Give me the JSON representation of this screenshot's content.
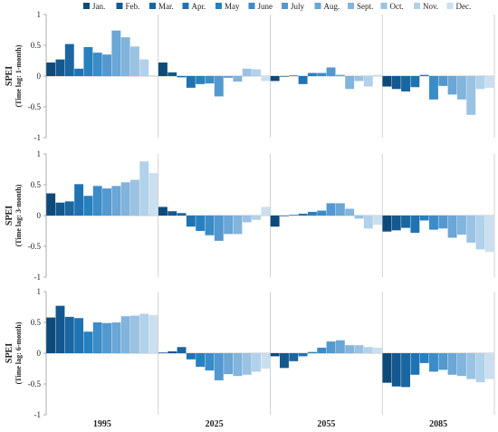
{
  "chart_data": {
    "type": "bar",
    "legend": {
      "placement": "top",
      "entries": [
        "Jan.",
        "Feb.",
        "Mar.",
        "Apr.",
        "May",
        "June",
        "July",
        "Aug.",
        "Sept.",
        "Oct.",
        "Nov.",
        "Dec."
      ]
    },
    "months": [
      "Jan.",
      "Feb.",
      "Mar.",
      "Apr.",
      "May",
      "June",
      "July",
      "Aug.",
      "Sept.",
      "Oct.",
      "Nov.",
      "Dec."
    ],
    "month_colors": [
      "#0d4a7a",
      "#14588f",
      "#1a66a1",
      "#1f73b3",
      "#2780c0",
      "#3b8cc8",
      "#5398cf",
      "#6aa6d6",
      "#82b4dc",
      "#9ac2e3",
      "#b2d1ea",
      "#cadff0"
    ],
    "x_groups": [
      "1995",
      "2025",
      "2055",
      "2085"
    ],
    "y_ticks": [
      "1",
      "0.5",
      "0",
      "-0.5",
      "-1"
    ],
    "ylim": [
      -1,
      1
    ],
    "grid": false,
    "panels": [
      {
        "ylabel": "SPEI",
        "ylabel_sub": "(Time lag: 1-month)",
        "series": [
          {
            "group": "1995",
            "values": [
              0.22,
              0.27,
              0.52,
              0.12,
              0.47,
              0.38,
              0.35,
              0.74,
              0.63,
              0.48,
              0.27,
              0.0
            ]
          },
          {
            "group": "2025",
            "values": [
              0.22,
              0.06,
              -0.02,
              -0.19,
              -0.13,
              -0.12,
              -0.33,
              -0.03,
              -0.09,
              0.12,
              0.11,
              -0.08
            ]
          },
          {
            "group": "2055",
            "values": [
              -0.08,
              -0.01,
              0.01,
              -0.13,
              0.05,
              0.05,
              0.14,
              0.02,
              -0.21,
              -0.08,
              -0.17,
              0.02
            ]
          },
          {
            "group": "2085",
            "values": [
              -0.17,
              -0.21,
              -0.25,
              -0.18,
              0.02,
              -0.38,
              -0.16,
              -0.3,
              -0.38,
              -0.63,
              -0.21,
              -0.19
            ]
          }
        ]
      },
      {
        "ylabel": "SPEI",
        "ylabel_sub": "(Time lag: 3-month)",
        "series": [
          {
            "group": "1995",
            "values": [
              0.36,
              0.21,
              0.23,
              0.51,
              0.32,
              0.48,
              0.44,
              0.48,
              0.54,
              0.58,
              0.88,
              0.69
            ]
          },
          {
            "group": "2025",
            "values": [
              0.14,
              0.07,
              0.04,
              -0.18,
              -0.25,
              -0.32,
              -0.41,
              -0.3,
              -0.3,
              -0.11,
              -0.07,
              0.14
            ]
          },
          {
            "group": "2055",
            "values": [
              -0.18,
              -0.01,
              0.01,
              0.03,
              0.06,
              0.08,
              0.2,
              0.2,
              0.11,
              -0.05,
              -0.21,
              -0.15
            ]
          },
          {
            "group": "2085",
            "values": [
              -0.26,
              -0.24,
              -0.2,
              -0.28,
              -0.08,
              -0.23,
              -0.21,
              -0.36,
              -0.31,
              -0.44,
              -0.55,
              -0.59
            ]
          }
        ]
      },
      {
        "ylabel": "SPEI",
        "ylabel_sub": "(Time lag: 6-month)",
        "series": [
          {
            "group": "1995",
            "values": [
              0.58,
              0.77,
              0.59,
              0.57,
              0.35,
              0.5,
              0.49,
              0.5,
              0.6,
              0.61,
              0.64,
              0.62
            ]
          },
          {
            "group": "2025",
            "values": [
              0.01,
              0.03,
              0.1,
              -0.1,
              -0.22,
              -0.28,
              -0.44,
              -0.34,
              -0.37,
              -0.35,
              -0.3,
              -0.25
            ]
          },
          {
            "group": "2055",
            "values": [
              -0.05,
              -0.24,
              -0.13,
              -0.05,
              0.02,
              0.09,
              0.19,
              0.21,
              0.13,
              0.13,
              0.1,
              0.09
            ]
          },
          {
            "group": "2085",
            "values": [
              -0.48,
              -0.54,
              -0.55,
              -0.35,
              -0.16,
              -0.3,
              -0.27,
              -0.35,
              -0.37,
              -0.42,
              -0.47,
              -0.42
            ]
          }
        ]
      }
    ]
  }
}
